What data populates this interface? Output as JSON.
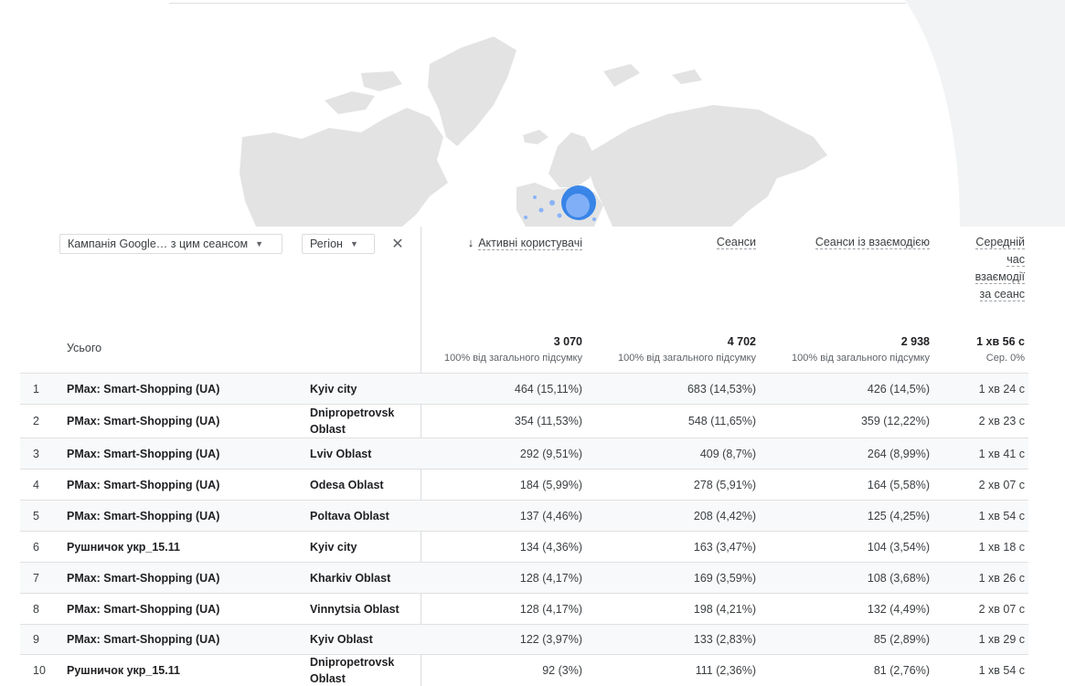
{
  "filters": {
    "dimension1": "Кампанія Google… з цим сеансом",
    "dimension2": "Регіон"
  },
  "columns": {
    "active_users": "Активні користувачі",
    "sessions": "Сеанси",
    "engaged_sessions": "Сеанси із взаємодією",
    "avg_time_l1": "Середній",
    "avg_time_l2": "час",
    "avg_time_l3": "взаємодії",
    "avg_time_l4": "за сеанс"
  },
  "totals": {
    "label": "Усього",
    "active_users": "3 070",
    "active_users_sub": "100% від загального підсумку",
    "sessions": "4 702",
    "sessions_sub": "100% від загального підсумку",
    "engaged_sessions": "2 938",
    "engaged_sessions_sub": "100% від загального підсумку",
    "avg_time": "1 хв 56 с",
    "avg_time_sub": "Сер. 0%"
  },
  "rows": [
    {
      "idx": "1",
      "campaign": "PMax: Smart-Shopping (UA)",
      "region": "Kyiv city",
      "users": "464 (15,11%)",
      "sessions": "683 (14,53%)",
      "engaged": "426 (14,5%)",
      "time": "1 хв 24 с"
    },
    {
      "idx": "2",
      "campaign": "PMax: Smart-Shopping (UA)",
      "region": "Dnipropetrovsk Oblast",
      "users": "354 (11,53%)",
      "sessions": "548 (11,65%)",
      "engaged": "359 (12,22%)",
      "time": "2 хв 23 с"
    },
    {
      "idx": "3",
      "campaign": "PMax: Smart-Shopping (UA)",
      "region": "Lviv Oblast",
      "users": "292 (9,51%)",
      "sessions": "409 (8,7%)",
      "engaged": "264 (8,99%)",
      "time": "1 хв 41 с"
    },
    {
      "idx": "4",
      "campaign": "PMax: Smart-Shopping (UA)",
      "region": "Odesa Oblast",
      "users": "184 (5,99%)",
      "sessions": "278 (5,91%)",
      "engaged": "164 (5,58%)",
      "time": "2 хв 07 с"
    },
    {
      "idx": "5",
      "campaign": "PMax: Smart-Shopping (UA)",
      "region": "Poltava Oblast",
      "users": "137 (4,46%)",
      "sessions": "208 (4,42%)",
      "engaged": "125 (4,25%)",
      "time": "1 хв 54 с"
    },
    {
      "idx": "6",
      "campaign": "Рушничок укр_15.11",
      "region": "Kyiv city",
      "users": "134 (4,36%)",
      "sessions": "163 (3,47%)",
      "engaged": "104 (3,54%)",
      "time": "1 хв 18 с"
    },
    {
      "idx": "7",
      "campaign": "PMax: Smart-Shopping (UA)",
      "region": "Kharkiv Oblast",
      "users": "128 (4,17%)",
      "sessions": "169 (3,59%)",
      "engaged": "108 (3,68%)",
      "time": "1 хв 26 с"
    },
    {
      "idx": "8",
      "campaign": "PMax: Smart-Shopping (UA)",
      "region": "Vinnytsia Oblast",
      "users": "128 (4,17%)",
      "sessions": "198 (4,21%)",
      "engaged": "132 (4,49%)",
      "time": "2 хв 07 с"
    },
    {
      "idx": "9",
      "campaign": "PMax: Smart-Shopping (UA)",
      "region": "Kyiv Oblast",
      "users": "122 (3,97%)",
      "sessions": "133 (2,83%)",
      "engaged": "85 (2,89%)",
      "time": "1 хв 29 с"
    },
    {
      "idx": "10",
      "campaign": "Рушничок укр_15.11",
      "region": "Dnipropetrovsk Oblast",
      "users": "92 (3%)",
      "sessions": "111 (2,36%)",
      "engaged": "81 (2,76%)",
      "time": "1 хв 54 с"
    }
  ],
  "colors": {
    "map_land": "#e3e3e3",
    "map_bubble": "#1a73e8",
    "sort_arrow": "#202124"
  }
}
